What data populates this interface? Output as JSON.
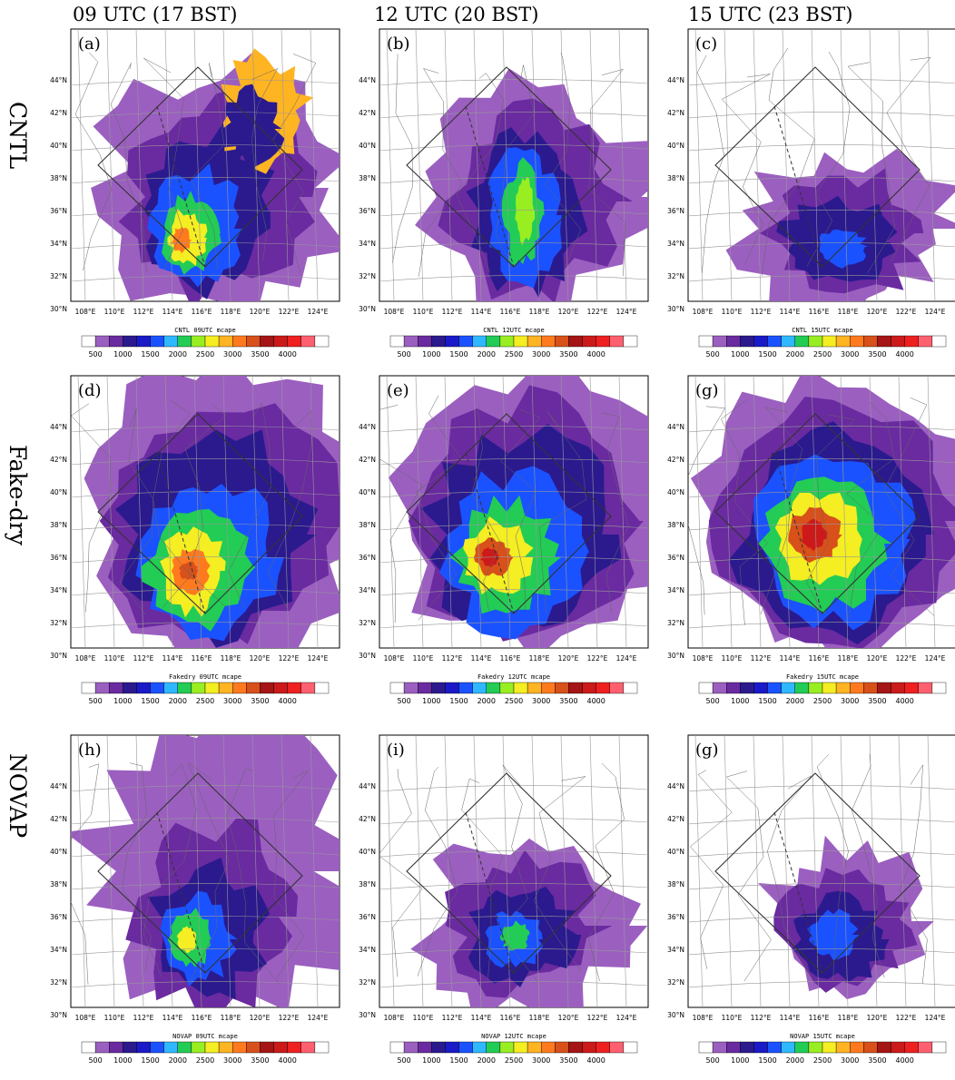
{
  "columns": [
    "09 UTC (17 BST)",
    "12 UTC (20 BST)",
    "15 UTC (23 BST)"
  ],
  "rows": [
    "CNTL",
    "Fake-dry",
    "NOVAP"
  ],
  "latitude_labels": [
    "44°N",
    "42°N",
    "40°N",
    "38°N",
    "36°N",
    "34°N",
    "32°N",
    "30°N"
  ],
  "longitude_labels": [
    "108°E",
    "110°E",
    "112°E",
    "114°E",
    "116°E",
    "118°E",
    "120°E",
    "122°E",
    "124°E"
  ],
  "colorbar_ticks": [
    "500",
    "1000",
    "1500",
    "2000",
    "2500",
    "3000",
    "3500",
    "4000"
  ],
  "colorbar_colors": [
    "#ffffff",
    "#9b5fc0",
    "#6a2aa0",
    "#2a1a8e",
    "#1a1ac8",
    "#1a52ff",
    "#2fb8ff",
    "#22cc55",
    "#99ee22",
    "#f4ee22",
    "#ffb422",
    "#ff7a1e",
    "#d8501a",
    "#a51515",
    "#cc1a1a",
    "#ee2020",
    "#ff6070",
    "#ffffff"
  ],
  "panels": [
    {
      "letter": "(a)",
      "caption": "CNTL 09UTC mcape",
      "scenario": "cntl",
      "time": 0
    },
    {
      "letter": "(b)",
      "caption": "CNTL 12UTC mcape",
      "scenario": "cntl",
      "time": 1
    },
    {
      "letter": "(c)",
      "caption": "CNTL 15UTC mcape",
      "scenario": "cntl",
      "time": 2
    },
    {
      "letter": "(d)",
      "caption": "Fakedry 09UTC mcape",
      "scenario": "fakedry",
      "time": 0
    },
    {
      "letter": "(e)",
      "caption": "Fakedry 12UTC mcape",
      "scenario": "fakedry",
      "time": 1
    },
    {
      "letter": "(g)",
      "caption": "Fakedry 15UTC mcape",
      "scenario": "fakedry",
      "time": 2
    },
    {
      "letter": "(h)",
      "caption": "NOVAP 09UTC mcape",
      "scenario": "novap",
      "time": 0
    },
    {
      "letter": "(i)",
      "caption": "NOVAP 12UTC mcape",
      "scenario": "novap",
      "time": 1
    },
    {
      "letter": "(g)",
      "caption": "NOVAP 15UTC mcape",
      "scenario": "novap",
      "time": 2
    }
  ]
}
